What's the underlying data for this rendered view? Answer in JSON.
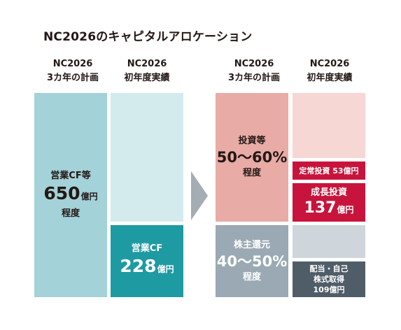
{
  "title": "NC2026のキャピタルアロケーション",
  "columns": [
    {
      "line1": "NC2026",
      "line2": "3カ年の計画"
    },
    {
      "line1": "NC2026",
      "line2": "初年度実績"
    },
    {
      "line1": "NC2026",
      "line2": "3カ年の計画"
    },
    {
      "line1": "NC2026",
      "line2": "初年度実績"
    }
  ],
  "blocks": {
    "plan_cf": {
      "label": "営業CF等",
      "value": "650",
      "unit": "億円",
      "note": "程度"
    },
    "actual_cf": {
      "label": "営業CF",
      "value": "228",
      "unit": "億円"
    },
    "plan_invest": {
      "label": "投資等",
      "value": "50〜60%",
      "note": "程度"
    },
    "plan_return": {
      "label": "株主還元",
      "value": "40〜50%",
      "note": "程度"
    },
    "actual_regular": {
      "label": "定常投資 53億円"
    },
    "actual_growth": {
      "label": "成長投資",
      "value": "137",
      "unit": "億円"
    },
    "actual_return": {
      "line1": "配当・自己",
      "line2": "株式取得",
      "line3": "109億円"
    }
  },
  "colors": {
    "cf_plan": "#a3d2d8",
    "cf_plan_light": "#d4ebee",
    "cf_actual": "#1e9aa3",
    "invest_plan": "#e8aba6",
    "invest_light": "#f7d7d4",
    "invest_actual": "#c8143c",
    "return_plan": "#9aa9b3",
    "return_light": "#ced6dc",
    "return_actual": "#4f5d68",
    "arrow": "#a4adb4"
  },
  "chart_data": {
    "type": "bar",
    "categories": [
      "NC2026 3カ年の計画",
      "NC2026 初年度実績"
    ],
    "series": [
      {
        "name": "営業CF等",
        "values": [
          650,
          228
        ]
      },
      {
        "name": "定常投資",
        "values": [
          null,
          53
        ]
      },
      {
        "name": "成長投資",
        "values": [
          null,
          137
        ]
      },
      {
        "name": "配当・自己株式取得",
        "values": [
          null,
          109
        ]
      }
    ],
    "plan_allocation": {
      "投資等": "50〜60%",
      "株主還元": "40〜50%"
    },
    "unit": "億円"
  }
}
